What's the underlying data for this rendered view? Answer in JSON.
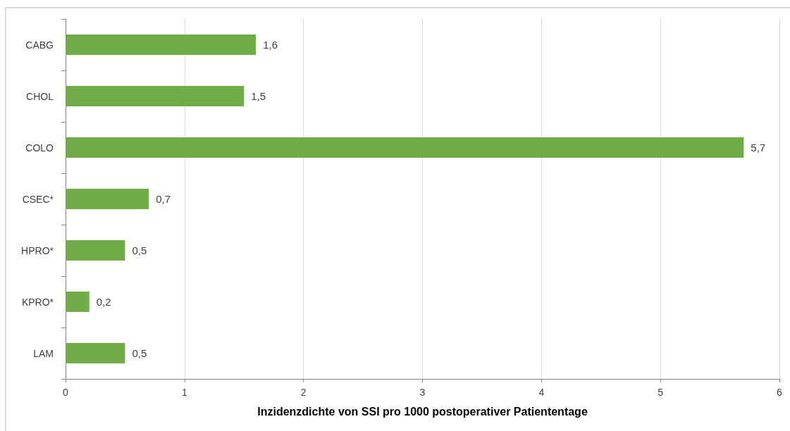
{
  "chart_data": {
    "type": "bar",
    "orientation": "horizontal",
    "xlabel": "Inzidenzdichte von SSI pro 1000 postoperativer Patiententage",
    "categories": [
      "CABG",
      "CHOL",
      "COLO",
      "CSEC*",
      "HPRO*",
      "KPRO*",
      "LAM"
    ],
    "values": [
      1.6,
      1.5,
      5.7,
      0.7,
      0.5,
      0.2,
      0.5
    ],
    "value_labels": [
      "1,6",
      "1,5",
      "5,7",
      "0,7",
      "0,5",
      "0,2",
      "0,5"
    ],
    "color": "#70ad47",
    "xlim": [
      0,
      6
    ],
    "xticks": [
      0,
      1,
      2,
      3,
      4,
      5,
      6
    ],
    "grid": "x"
  }
}
